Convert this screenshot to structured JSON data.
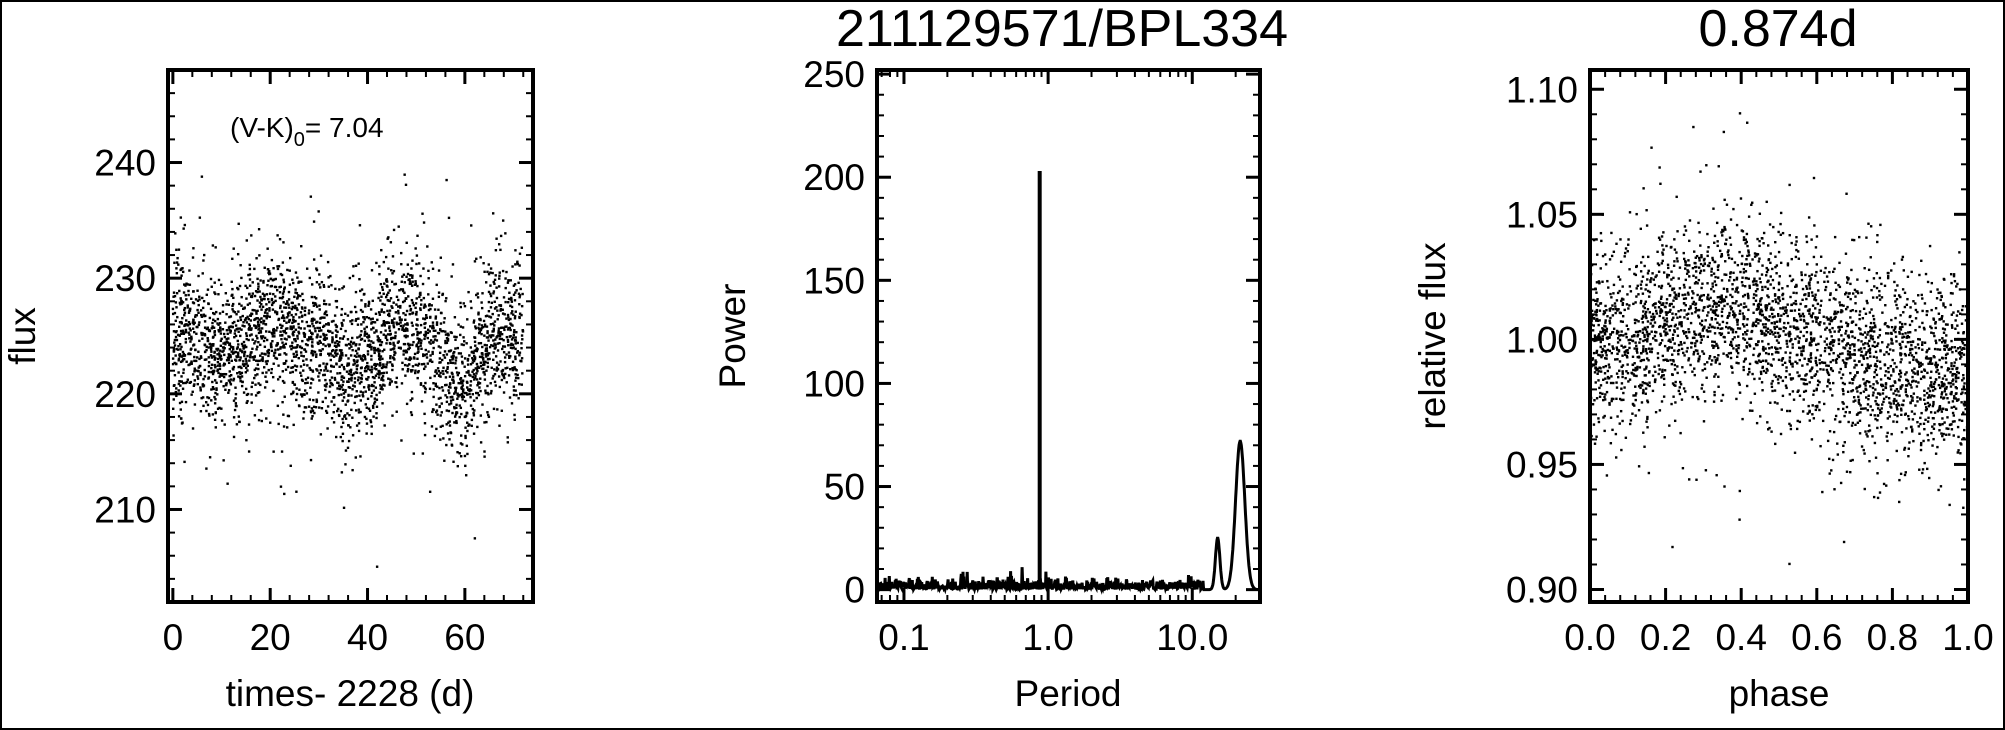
{
  "title": "211129571/BPL334",
  "subtitle": "0.874d",
  "chart_data": [
    {
      "type": "scatter",
      "xlabel": "times- 2228 (d)",
      "ylabel": "flux",
      "annotation": {
        "text": "(V-K)",
        "subscript": "0",
        "value": "= 7.04"
      },
      "xlim": [
        -1,
        74
      ],
      "ylim": [
        202,
        248
      ],
      "xticks": [
        0,
        20,
        40,
        60
      ],
      "yticks": [
        210,
        220,
        230,
        240
      ],
      "binned_trend": {
        "x": [
          0,
          5,
          10,
          15,
          20,
          25,
          30,
          35,
          40,
          45,
          50,
          55,
          60,
          65,
          70
        ],
        "y": [
          225,
          224.5,
          223,
          225,
          226,
          225,
          224,
          222,
          222.5,
          226,
          226,
          223,
          220,
          225.5,
          225
        ]
      },
      "scatter_sigma": 3.2,
      "color": "#000000"
    },
    {
      "type": "line",
      "xlabel": "Period",
      "ylabel": "Power",
      "xscale": "log",
      "xlim": [
        0.065,
        29.5
      ],
      "ylim": [
        -6,
        252
      ],
      "xticks": [
        0.1,
        1.0,
        10.0
      ],
      "xtick_labels": [
        "0.1",
        "1.0",
        "10.0"
      ],
      "yticks": [
        0,
        50,
        100,
        150,
        200,
        250
      ],
      "peaks": [
        {
          "period": 0.874,
          "power": 203
        },
        {
          "period": 15,
          "power": 25
        },
        {
          "period": 21.5,
          "power": 72
        }
      ],
      "color": "#000000"
    },
    {
      "type": "scatter",
      "xlabel": "phase",
      "ylabel": "relative flux",
      "xlim": [
        0.0,
        1.0
      ],
      "ylim": [
        0.895,
        1.1077
      ],
      "xticks": [
        0.0,
        0.2,
        0.4,
        0.6,
        0.8,
        1.0
      ],
      "xtick_labels": [
        "0.0",
        "0.2",
        "0.4",
        "0.6",
        "0.8",
        "1.0"
      ],
      "yticks": [
        0.9,
        0.95,
        1.0,
        1.05,
        1.1
      ],
      "ytick_labels": [
        "0.90",
        "0.95",
        "1.00",
        "1.05",
        "1.10"
      ],
      "binned_trend": {
        "x": [
          0.0,
          0.1,
          0.2,
          0.3,
          0.4,
          0.5,
          0.6,
          0.7,
          0.8,
          0.9,
          1.0
        ],
        "y": [
          1.0,
          1.0,
          1.005,
          1.01,
          1.012,
          1.005,
          1.0,
          0.995,
          0.99,
          0.988,
          0.985
        ]
      },
      "scatter_sigma": 0.018,
      "color": "#000000"
    }
  ]
}
